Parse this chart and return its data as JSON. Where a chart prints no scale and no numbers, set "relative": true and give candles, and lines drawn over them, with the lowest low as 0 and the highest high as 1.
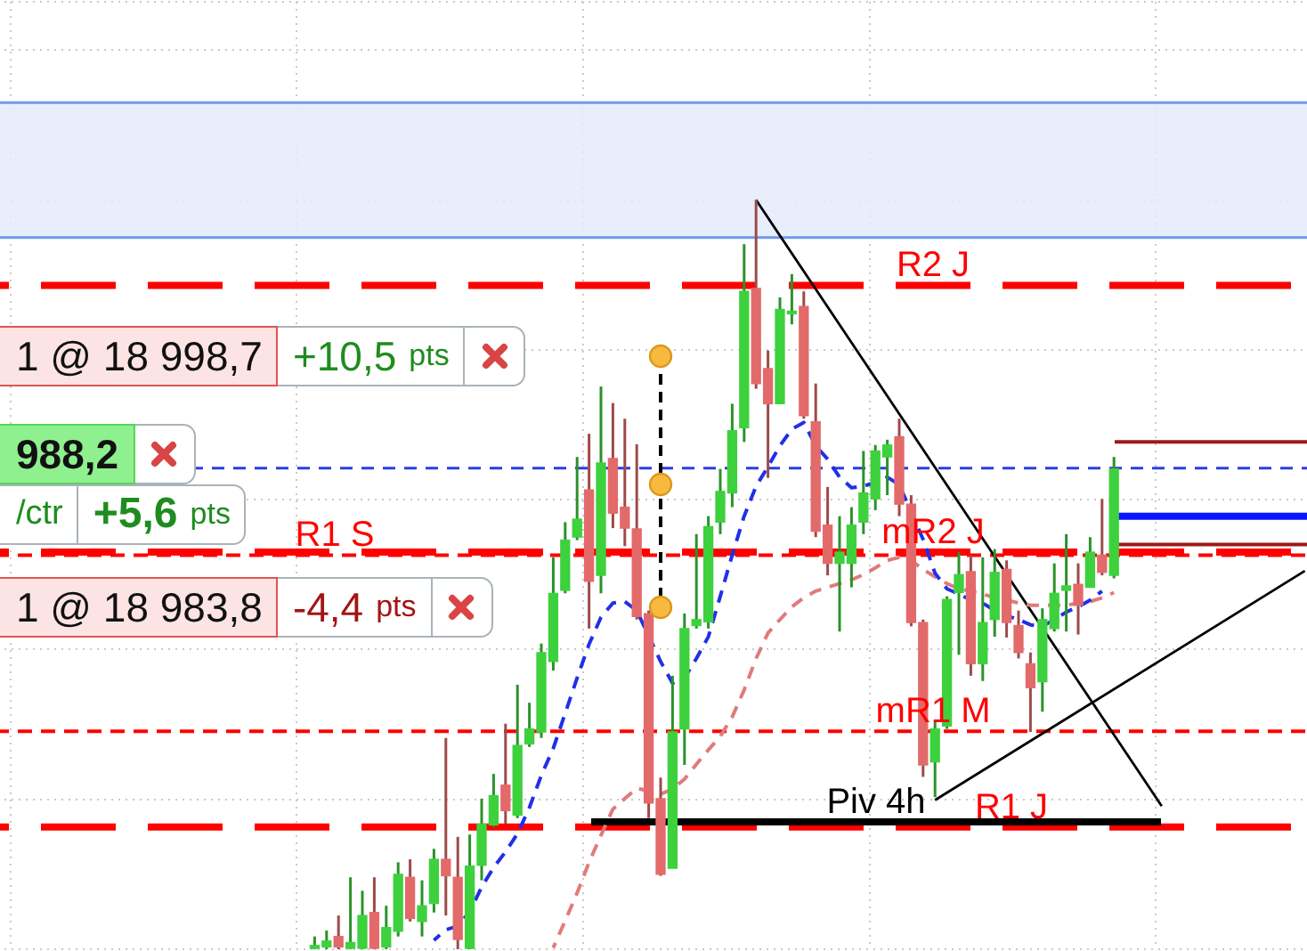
{
  "chart_data": {
    "type": "candlestick",
    "relative": true,
    "grid": true,
    "tick_labels": false,
    "line_style": "dashed",
    "categories": [
      null,
      null,
      null,
      null,
      null,
      null,
      null,
      null,
      null,
      null,
      null,
      null,
      null,
      null,
      null,
      null,
      null,
      null,
      null,
      null,
      null,
      null,
      null,
      null,
      null,
      null,
      null,
      null,
      null,
      null,
      null,
      null,
      null,
      null,
      null,
      null,
      null,
      null,
      null,
      null,
      null,
      null,
      null,
      null,
      null,
      null,
      null,
      null,
      null,
      null,
      null,
      null,
      null,
      null,
      null,
      null,
      null,
      null,
      null,
      null,
      null,
      null,
      null,
      null,
      null,
      null,
      null,
      null,
      null,
      null,
      null,
      null,
      null,
      null,
      null,
      null,
      null,
      null,
      null,
      null,
      null,
      null,
      null,
      null,
      null,
      null,
      null,
      null,
      null,
      null,
      null,
      null,
      null,
      null,
      null,
      null,
      null,
      null,
      null,
      null,
      null,
      null,
      null,
      null,
      null,
      null,
      null,
      null,
      null,
      null
    ],
    "ohlc": [
      null,
      null,
      null,
      null,
      null,
      null,
      null,
      null,
      null,
      null,
      null,
      null,
      null,
      null,
      null,
      null,
      null,
      null,
      null,
      null,
      null,
      null,
      null,
      null,
      null,
      null,
      [
        0.001,
        0.017,
        0,
        0.005
      ],
      [
        0.003,
        0.025,
        0,
        0.011
      ],
      [
        0.017,
        0.045,
        0,
        0.003
      ],
      [
        0,
        0.096,
        0,
        0.009
      ],
      [
        0,
        0.078,
        0,
        0.045
      ],
      [
        0.049,
        0.096,
        0,
        0
      ],
      [
        0.003,
        0.058,
        0,
        0.029
      ],
      [
        0.024,
        0.116,
        0.017,
        0.1
      ],
      [
        0.096,
        0.12,
        0.037,
        0.041
      ],
      [
        0.037,
        0.092,
        0.017,
        0.058
      ],
      [
        0.061,
        0.134,
        0.049,
        0.12
      ],
      [
        0.12,
        0.282,
        0.045,
        0.098
      ],
      [
        0.096,
        0.15,
        0,
        0.013
      ],
      [
        0,
        0.153,
        0,
        0.111
      ],
      [
        0.112,
        0.201,
        0.092,
        0.167
      ],
      [
        0.166,
        0.234,
        0.163,
        0.205
      ],
      [
        0.219,
        0.301,
        0.167,
        0.185
      ],
      [
        0.179,
        0.353,
        0.175,
        0.272
      ],
      [
        0.274,
        0.329,
        0.27,
        0.294
      ],
      [
        0.29,
        0.408,
        0.282,
        0.396
      ],
      [
        0.384,
        0.523,
        0.372,
        0.475
      ],
      [
        0.479,
        0.57,
        0.475,
        0.546
      ],
      [
        0.55,
        0.657,
        0.546,
        0.574
      ],
      [
        0.613,
        0.688,
        0.428,
        0.491
      ],
      [
        0.499,
        0.751,
        0.475,
        0.649
      ],
      [
        0.655,
        0.729,
        0.562,
        0.582
      ],
      [
        0.59,
        0.708,
        0.538,
        0.562
      ],
      [
        0.561,
        0.674,
        0.44,
        0.444
      ],
      [
        0.448,
        0.452,
        0.175,
        0.195
      ],
      [
        0.201,
        0.229,
        0.098,
        0.1
      ],
      [
        0.108,
        0.365,
        0.108,
        0.29
      ],
      [
        0.294,
        0.448,
        0.246,
        0.428
      ],
      [
        0.432,
        0.554,
        0.428,
        0.44
      ],
      [
        0.437,
        0.578,
        0.428,
        0.564
      ],
      [
        0.57,
        0.641,
        0.554,
        0.611
      ],
      [
        0.609,
        0.728,
        0.59,
        0.692
      ],
      [
        0.696,
        0.941,
        0.677,
        0.878
      ],
      [
        0.882,
        1,
        0.748,
        0.755
      ],
      [
        0.775,
        0.799,
        0.629,
        0.728
      ],
      [
        0.728,
        0.87,
        0.728,
        0.854
      ],
      [
        0.848,
        0.901,
        0.834,
        0.85
      ],
      [
        0.858,
        0.878,
        0.708,
        0.712
      ],
      [
        0.704,
        0.755,
        0.55,
        0.558
      ],
      [
        0.566,
        0.617,
        0.499,
        0.515
      ],
      [
        0.515,
        0.578,
        0.424,
        0.53
      ],
      [
        0.515,
        0.59,
        0.483,
        0.566
      ],
      [
        0.57,
        0.665,
        0.554,
        0.609
      ],
      [
        0.601,
        0.673,
        0.586,
        0.665
      ],
      [
        0.657,
        0.68,
        0.606,
        0.673
      ],
      [
        0.684,
        0.708,
        0.578,
        0.594
      ],
      [
        0.594,
        0.606,
        0.431,
        0.436
      ],
      [
        0.436,
        0.44,
        0.23,
        0.246
      ],
      [
        0.25,
        0.305,
        0.203,
        0.294
      ],
      [
        0.298,
        0.471,
        0.294,
        0.467
      ],
      [
        0.476,
        0.53,
        0.393,
        0.5
      ],
      [
        0.504,
        0.526,
        0.365,
        0.381
      ],
      [
        0.381,
        0.523,
        0.358,
        0.436
      ],
      [
        0.44,
        0.534,
        0.417,
        0.503
      ],
      [
        0.507,
        0.519,
        0.416,
        0.436
      ],
      [
        0.432,
        0.452,
        0.388,
        0.396
      ],
      [
        0.381,
        0.396,
        0.29,
        0.349
      ],
      [
        0.357,
        0.455,
        0.317,
        0.44
      ],
      [
        0.428,
        0.515,
        0.424,
        0.475
      ],
      [
        0.479,
        0.554,
        0.424,
        0.485
      ],
      [
        0.487,
        0.515,
        0.42,
        0.459
      ],
      [
        0.483,
        0.55,
        0.483,
        0.53
      ],
      [
        0.526,
        0.601,
        0.499,
        0.503
      ],
      [
        0.499,
        0.657,
        0.495,
        0.641
      ],
      null,
      null,
      null,
      null,
      null,
      null,
      null,
      null,
      null,
      null,
      null,
      null,
      null,
      null,
      null,
      null
    ],
    "colors": [
      null,
      null,
      null,
      null,
      null,
      null,
      null,
      null,
      null,
      null,
      null,
      null,
      null,
      null,
      null,
      null,
      null,
      null,
      null,
      null,
      null,
      null,
      null,
      null,
      null,
      null,
      "#3dd13d",
      "#3dd13d",
      "#e36a6a",
      "#3dd13d",
      "#3dd13d",
      "#e36a6a",
      "#3dd13d",
      "#3dd13d",
      "#e36a6a",
      "#3dd13d",
      "#3dd13d",
      "#e36a6a",
      "#e36a6a",
      "#3dd13d",
      "#3dd13d",
      "#3dd13d",
      "#e36a6a",
      "#3dd13d",
      "#3dd13d",
      "#3dd13d",
      "#3dd13d",
      "#3dd13d",
      "#3dd13d",
      "#e36a6a",
      "#3dd13d",
      "#e36a6a",
      "#e36a6a",
      "#e36a6a",
      "#e36a6a",
      "#e36a6a",
      "#3dd13d",
      "#3dd13d",
      "#3dd13d",
      "#3dd13d",
      "#3dd13d",
      "#3dd13d",
      "#3dd13d",
      "#e36a6a",
      "#e36a6a",
      "#3dd13d",
      "#3dd13d",
      "#e36a6a",
      "#e36a6a",
      "#e36a6a",
      "#3dd13d",
      "#3dd13d",
      "#3dd13d",
      "#3dd13d",
      "#3dd13d",
      "#e36a6a",
      "#e36a6a",
      "#e36a6a",
      "#3dd13d",
      "#3dd13d",
      "#3dd13d",
      "#e36a6a",
      "#3dd13d",
      "#3dd13d",
      "#e36a6a",
      "#e36a6a",
      "#e36a6a",
      "#3dd13d",
      "#3dd13d",
      "#3dd13d",
      "#e36a6a",
      "#3dd13d",
      "#e36a6a",
      "#3dd13d",
      null,
      null,
      null,
      null,
      null,
      null,
      null,
      null,
      null,
      null,
      null,
      null,
      null,
      null,
      null,
      null
    ],
    "series": [
      {
        "type": "line",
        "color": "#2030e8",
        "values": [
          null,
          null,
          null,
          null,
          null,
          null,
          null,
          null,
          null,
          null,
          null,
          null,
          null,
          null,
          null,
          null,
          null,
          null,
          null,
          null,
          null,
          null,
          null,
          null,
          null,
          null,
          null,
          null,
          null,
          null,
          null,
          null,
          null,
          null,
          null,
          null,
          0.012,
          0.026,
          0.031,
          0.05,
          0.083,
          0.109,
          0.13,
          0.154,
          0.189,
          0.232,
          0.268,
          0.315,
          0.362,
          0.407,
          0.443,
          0.462,
          0.464,
          0.452,
          null,
          0.384,
          0.355,
          0.362,
          0.388,
          0.417,
          0.471,
          0.526,
          0.578,
          0.618,
          0.644,
          0.672,
          0.694,
          0.703,
          0.672,
          0.654,
          0.63,
          0.616,
          0.618,
          0.623,
          0.63,
          0.62,
          null,
          0.547,
          0.502,
          0.481,
          0.474,
          0.466,
          0.462,
          0.452,
          0.445,
          0.44,
          0.433,
          0.431,
          0.44,
          0.45,
          0.457,
          0.466,
          0.478,
          null,
          null,
          null,
          null,
          null,
          null,
          null,
          null,
          null,
          null,
          null,
          null,
          null,
          null,
          null,
          null,
          null
        ]
      },
      {
        "type": "line",
        "color": "#e07b7b",
        "values": [
          null,
          null,
          null,
          null,
          null,
          null,
          null,
          null,
          null,
          null,
          null,
          null,
          null,
          null,
          null,
          null,
          null,
          null,
          null,
          null,
          null,
          null,
          null,
          null,
          null,
          null,
          null,
          null,
          null,
          null,
          null,
          null,
          null,
          null,
          null,
          null,
          null,
          null,
          null,
          null,
          null,
          null,
          null,
          null,
          null,
          null,
          0.002,
          0.038,
          0.075,
          0.116,
          0.152,
          0.187,
          0.201,
          0.215,
          0.211,
          0.207,
          0.214,
          0.227,
          0.247,
          0.266,
          0.284,
          0.31,
          0.346,
          0.388,
          0.422,
          0.44,
          0.457,
          0.469,
          0.478,
          0.483,
          0.488,
          0.493,
          0.5,
          0.509,
          0.519,
          0.523,
          0.519,
          0.507,
          0.497,
          0.488,
          0.481,
          0.478,
          0.474,
          0.469,
          0.466,
          0.462,
          0.459,
          0.459,
          0.459,
          0.459,
          0.462,
          0.464,
          0.469,
          0.476,
          null,
          null,
          null,
          null,
          null,
          null,
          null,
          null,
          null,
          null,
          null,
          null,
          null,
          null,
          null,
          null
        ]
      },
      {
        "type": "line",
        "color": "#000000",
        "line_style": "solid",
        "values": [
          null,
          null,
          null,
          null,
          null,
          null,
          null,
          null,
          null,
          null,
          null,
          null,
          null,
          null,
          null,
          null,
          null,
          null,
          null,
          null,
          null,
          null,
          null,
          null,
          null,
          null,
          null,
          null,
          null,
          null,
          null,
          null,
          null,
          null,
          null,
          null,
          null,
          null,
          null,
          null,
          null,
          null,
          null,
          null,
          null,
          null,
          null,
          null,
          null,
          null,
          null,
          null,
          null,
          null,
          null,
          null,
          null,
          null,
          null,
          null,
          null,
          null,
          null,
          1,
          null,
          null,
          null,
          null,
          null,
          null,
          null,
          null,
          null,
          null,
          null,
          null,
          null,
          null,
          null,
          null,
          null,
          null,
          null,
          null,
          null,
          null,
          null,
          null,
          null,
          null,
          null,
          null,
          null,
          null,
          null,
          null,
          null,
          0.191,
          null,
          null,
          null,
          null,
          null,
          null,
          null,
          null,
          null,
          null,
          null,
          null
        ]
      },
      {
        "type": "line",
        "color": "#000000",
        "line_style": "solid",
        "values": [
          null,
          null,
          null,
          null,
          null,
          null,
          null,
          null,
          null,
          null,
          null,
          null,
          null,
          null,
          null,
          null,
          null,
          null,
          null,
          null,
          null,
          null,
          null,
          null,
          null,
          null,
          null,
          null,
          null,
          null,
          null,
          null,
          null,
          null,
          null,
          null,
          null,
          null,
          null,
          null,
          null,
          null,
          null,
          null,
          null,
          null,
          null,
          null,
          null,
          null,
          null,
          null,
          null,
          null,
          null,
          null,
          null,
          null,
          null,
          null,
          null,
          null,
          null,
          null,
          null,
          null,
          null,
          null,
          null,
          null,
          null,
          null,
          null,
          null,
          null,
          null,
          null,
          null,
          0.199,
          null,
          null,
          null,
          null,
          null,
          null,
          null,
          null,
          null,
          null,
          null,
          null,
          null,
          null,
          null,
          null,
          null,
          null,
          null,
          null,
          null,
          null,
          null,
          null,
          null,
          null,
          null,
          null,
          null,
          null,
          0.505
        ]
      }
    ],
    "ref_lines": [
      {
        "axis": "y",
        "value": 0.886,
        "label": "R2 J",
        "color": "#ff0000",
        "line_style": "dashed"
      },
      {
        "axis": "y",
        "value": 0.53,
        "label": "mR2 J",
        "color": "#ff0000",
        "line_style": "dashed"
      },
      {
        "axis": "y",
        "value": 0.526,
        "label": "R1 S",
        "color": "#ff0000",
        "line_style": "dashed"
      },
      {
        "axis": "y",
        "value": 0.291,
        "label": "mR1 M",
        "color": "#ff0000",
        "line_style": "dashed"
      },
      {
        "axis": "y",
        "value": 0.163,
        "label": "R1 J",
        "color": "#ff0000",
        "line_style": "dashed"
      },
      {
        "axis": "y",
        "value": 0.17,
        "label": "Piv 4h",
        "color": "#000000",
        "line_style": "solid"
      },
      {
        "axis": "y",
        "value": 0.642,
        "color": "#2d3ce8",
        "line_style": "dashed"
      },
      {
        "axis": "y",
        "value": 0.677,
        "color": "#a01818",
        "line_style": "solid"
      },
      {
        "axis": "y",
        "value": 0.578,
        "color": "#0a14ff",
        "line_style": "solid"
      },
      {
        "axis": "y",
        "value": 0.54,
        "color": "#a01818",
        "line_style": "solid"
      },
      {
        "axis": "y",
        "value": 0.95,
        "color": "#6f9ae8",
        "line_style": "solid"
      },
      {
        "axis": "y",
        "value": 1.13,
        "color": "#6f9ae8",
        "line_style": "solid"
      }
    ],
    "bands": [
      {
        "axis": "y",
        "from": 0.95,
        "to": 1.13,
        "color": "#e5ebfc"
      }
    ],
    "annotations": [
      "1 @ 18 998,7",
      "+10,5 pts",
      "988,2",
      "/ctr",
      "+5,6 pts",
      "1 @ 18 983,8",
      "-4,4 pts"
    ]
  }
}
